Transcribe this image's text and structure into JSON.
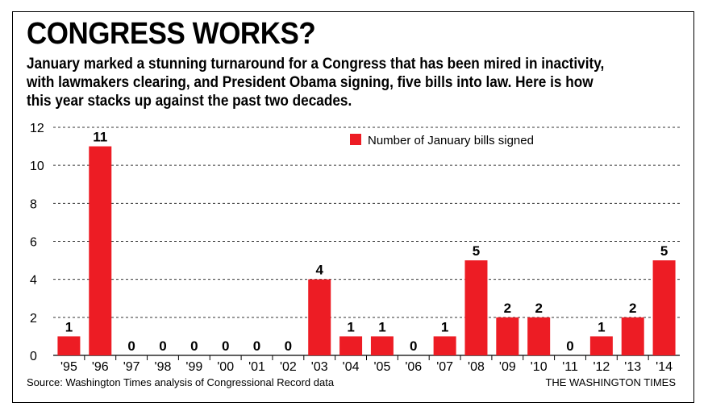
{
  "title": "CONGRESS WORKS?",
  "subtitle_lines": [
    "January marked a stunning turnaround for a Congress that has been mired in inactivity,",
    "with lawmakers clearing, and President Obama signing, five bills into law. Here is how",
    "this year stacks up against the past two decades."
  ],
  "source": "Source: Washington Times analysis of Congressional Record data",
  "credit": "THE WASHINGTON TIMES",
  "colors": {
    "bar": "#ed1c24",
    "grid": "#333333",
    "text": "#000000"
  },
  "chart_data": {
    "type": "bar",
    "categories": [
      "'95",
      "'96",
      "'97",
      "'98",
      "'99",
      "'00",
      "'01",
      "'02",
      "'03",
      "'04",
      "'05",
      "'06",
      "'07",
      "'08",
      "'09",
      "'10",
      "'11",
      "'12",
      "'13",
      "'14"
    ],
    "series": [
      {
        "name": "Number of January bills signed",
        "values": [
          1,
          11,
          0,
          0,
          0,
          0,
          0,
          0,
          4,
          1,
          1,
          0,
          1,
          5,
          2,
          2,
          0,
          1,
          2,
          5
        ]
      }
    ],
    "ylim": [
      0,
      12
    ],
    "yticks": [
      0,
      2,
      4,
      6,
      8,
      10,
      12
    ],
    "grid": true,
    "data_labels": true,
    "legend_position": "top-right"
  }
}
